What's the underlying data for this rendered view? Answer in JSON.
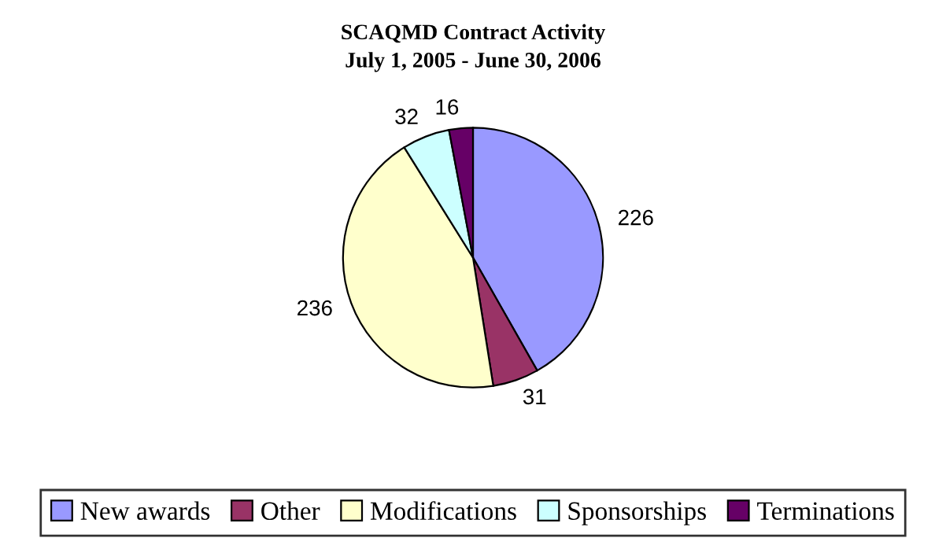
{
  "chart_data": {
    "type": "pie",
    "title": "SCAQMD Contract Activity",
    "subtitle": "July 1, 2005 - June 30, 2006",
    "categories": [
      "New awards",
      "Other",
      "Modifications",
      "Sponsorships",
      "Terminations"
    ],
    "values": [
      226,
      31,
      236,
      32,
      16
    ],
    "colors": [
      "#9999ff",
      "#993366",
      "#ffffcc",
      "#ccffff",
      "#660066"
    ],
    "data_labels": true,
    "legend": "bottom"
  }
}
